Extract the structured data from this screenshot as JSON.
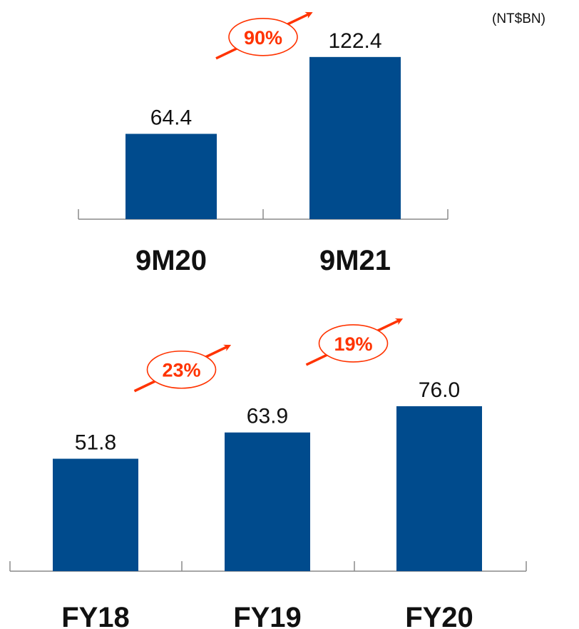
{
  "unit": "(NT$BN)",
  "colors": {
    "bar": "#004b8d",
    "growth": "#ff3300",
    "axis": "#8a8a8a",
    "text": "#111111"
  },
  "chart_data": [
    {
      "type": "bar",
      "categories": [
        "9M20",
        "9M21"
      ],
      "values": [
        64.4,
        122.4
      ],
      "value_labels": [
        "64.4",
        "122.4"
      ],
      "growth": [
        {
          "from": "9M20",
          "to": "9M21",
          "label": "90%"
        }
      ],
      "ylim": [
        0,
        125
      ]
    },
    {
      "type": "bar",
      "categories": [
        "FY18",
        "FY19",
        "FY20"
      ],
      "values": [
        51.8,
        63.9,
        76.0
      ],
      "value_labels": [
        "51.8",
        "63.9",
        "76.0"
      ],
      "growth": [
        {
          "from": "FY18",
          "to": "FY19",
          "label": "23%"
        },
        {
          "from": "FY19",
          "to": "FY20",
          "label": "19%"
        }
      ],
      "ylim": [
        0,
        125
      ]
    }
  ]
}
